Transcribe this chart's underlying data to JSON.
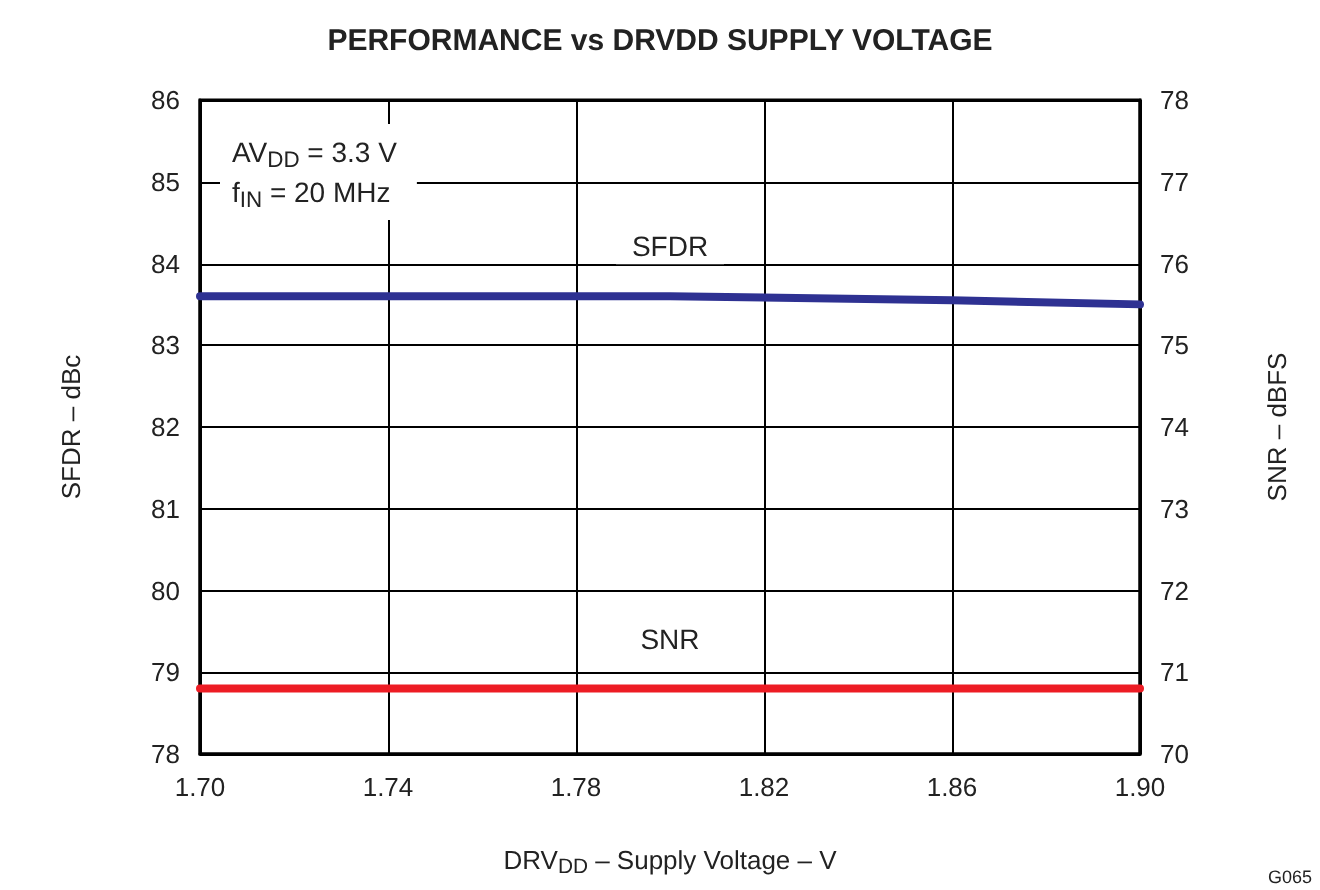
{
  "chart_data": {
    "type": "line",
    "title": "PERFORMANCE vs DRVDD SUPPLY VOLTAGE",
    "xlabel": "DRV$_{DD}$ – Supply Voltage – V",
    "ylabel": "SFDR – dBc",
    "y2label": "SNR – dBFS",
    "annotations": [
      "AV$_{DD}$ = 3.3 V",
      "f$_{IN}$ = 20 MHz",
      "G065"
    ],
    "x": [
      1.7,
      1.74,
      1.78,
      1.8,
      1.86,
      1.9
    ],
    "series": [
      {
        "name": "SFDR",
        "color": "#2e3192",
        "values": [
          83.6,
          83.6,
          83.6,
          83.6,
          83.55,
          83.5
        ]
      },
      {
        "name": "SNR",
        "color": "#ed1c24",
        "axis": "y2",
        "values": [
          70.8,
          70.8,
          70.8,
          70.8,
          70.8,
          70.8
        ]
      }
    ],
    "xlim": [
      1.7,
      1.9
    ],
    "xticks": [
      {
        "value": 1.7,
        "label": "1.70"
      },
      {
        "value": 1.74,
        "label": "1.74"
      },
      {
        "value": 1.78,
        "label": "1.78"
      },
      {
        "value": 1.82,
        "label": "1.82"
      },
      {
        "value": 1.86,
        "label": "1.86"
      },
      {
        "value": 1.9,
        "label": "1.90"
      }
    ],
    "ylim": [
      78,
      86
    ],
    "yticks": [
      78,
      79,
      80,
      81,
      82,
      83,
      84,
      85,
      86
    ],
    "y2lim": [
      70,
      78
    ],
    "y2ticks": [
      70,
      71,
      72,
      73,
      74,
      75,
      76,
      77,
      78
    ],
    "grid": true,
    "legend": false,
    "marker": "none",
    "line_style": "solid"
  }
}
